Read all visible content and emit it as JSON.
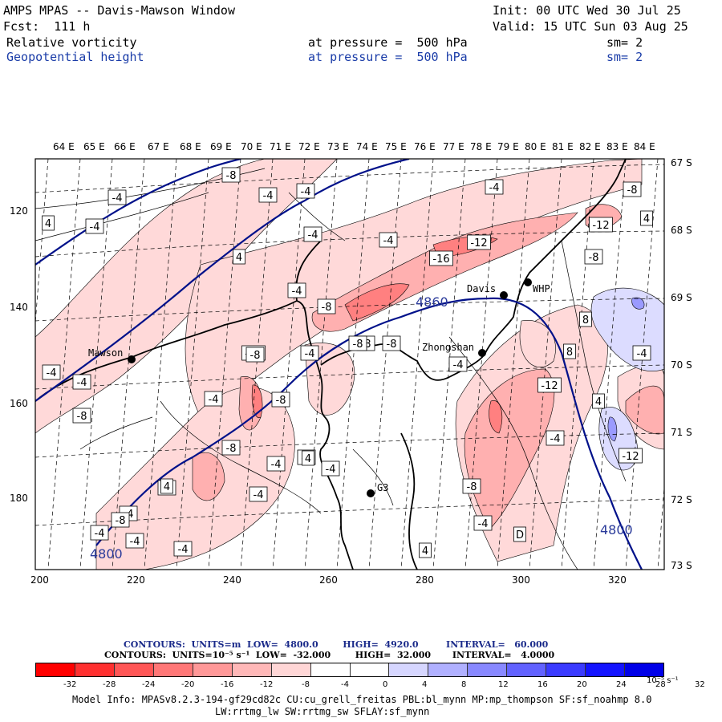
{
  "header": {
    "title": "AMPS MPAS -- Davis-Mawson Window",
    "init": "Init: 00 UTC Wed 30 Jul 25",
    "fcst": "Fcst:  111 h",
    "valid": "Valid: 15 UTC Sun 03 Aug 25",
    "field1": {
      "name": "Relative vorticity",
      "level": "at pressure =  500 hPa",
      "sm": "sm= 2"
    },
    "field2": {
      "name": "Geopotential height",
      "level": "at pressure =  500 hPa",
      "sm": "sm= 2"
    }
  },
  "axes": {
    "lon_labels": [
      "64 E",
      "65 E",
      "66 E",
      "67 E",
      "68 E",
      "69 E",
      "70 E",
      "71 E",
      "72 E",
      "73 E",
      "74 E",
      "75 E",
      "76 E",
      "77 E",
      "78 E",
      "79 E",
      "80 E",
      "81 E",
      "82 E",
      "83 E",
      "84 E"
    ],
    "lat_labels": [
      "67 S",
      "68 S",
      "69 S",
      "70 S",
      "71 S",
      "72 S",
      "73 S"
    ],
    "y_ticks": [
      "120",
      "140",
      "160",
      "180"
    ],
    "x_ticks": [
      "200",
      "220",
      "240",
      "260",
      "280",
      "300",
      "320"
    ]
  },
  "stations": [
    {
      "name": "Mawson"
    },
    {
      "name": "Davis"
    },
    {
      "name": "WHP"
    },
    {
      "name": "Zhongshan"
    },
    {
      "name": "G3"
    }
  ],
  "contour_labels": {
    "vorticity": [
      "-8",
      "-4",
      "-4",
      "-4",
      "4",
      "-4",
      "-4",
      "4",
      "-4",
      "-4",
      "-8",
      "-4",
      "-12",
      "-16",
      "-8",
      "-12",
      "-8",
      "4",
      "-12",
      "-8",
      "-8",
      "-4",
      "-4",
      "-4",
      "8",
      "-8",
      "-4",
      "-8",
      "-12",
      "-8",
      "-4",
      "4",
      "-8",
      "-8",
      "-4",
      "-8",
      "-4",
      "-8",
      "-4",
      "-4",
      "-4",
      "D",
      "-4",
      "-4",
      "-4",
      "4",
      "-12",
      "4",
      "-8",
      "8",
      "-4",
      "-4",
      "4",
      "-8"
    ],
    "height": [
      "4860",
      "4800",
      "4800"
    ]
  },
  "contours_info": {
    "line1": "CONTOURS:  UNITS=m  LOW=  4800.0        HIGH=  4920.0         INTERVAL=   60.000",
    "line2": "CONTOURS:  UNITS=10⁻⁵ s⁻¹  LOW=  -32.000        HIGH=  32.000       INTERVAL=   4.0000"
  },
  "colorbar": {
    "colors": [
      "#ff0000",
      "#ff3030",
      "#ff5656",
      "#ff7777",
      "#ff9898",
      "#ffb8b8",
      "#ffd6d6",
      "#ffffff",
      "#ffffff",
      "#d6d6ff",
      "#b0b0ff",
      "#8888ff",
      "#6262ff",
      "#3b3bff",
      "#1414ff",
      "#0000e8"
    ],
    "ticks": [
      "-32",
      "-28",
      "-24",
      "-20",
      "-16",
      "-12",
      "-8",
      "-4",
      "0",
      "4",
      "8",
      "12",
      "16",
      "20",
      "24",
      "28",
      "32"
    ],
    "units": "10⁻⁵ s⁻¹"
  },
  "model_info": {
    "line1": "Model Info: MPASv8.2.3-194-gf29cd82c CU:cu_grell_freitas PBL:bl_mynn MP:mp_thompson SF:sf_noahmp 8.0",
    "line2": "LW:rrtmg_lw SW:rrtmg_sw SFLAY:sf_mynn"
  }
}
